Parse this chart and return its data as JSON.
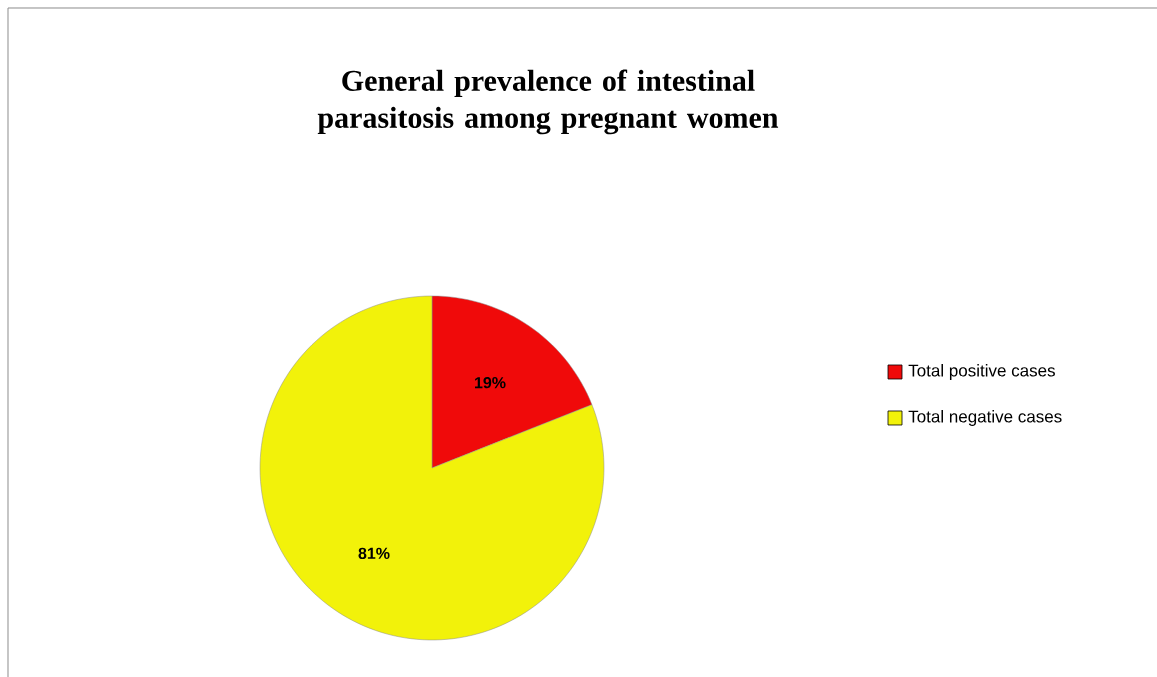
{
  "chart_data": {
    "type": "pie",
    "title": "General prevalence of intestinal parasitosis among pregnant women",
    "categories": [
      "Total positive cases",
      "Total negative cases"
    ],
    "values": [
      19,
      81
    ],
    "value_labels": [
      "19%",
      "81%"
    ],
    "colors": [
      "#f00a0a",
      "#f2f20a"
    ],
    "legend": "right"
  }
}
